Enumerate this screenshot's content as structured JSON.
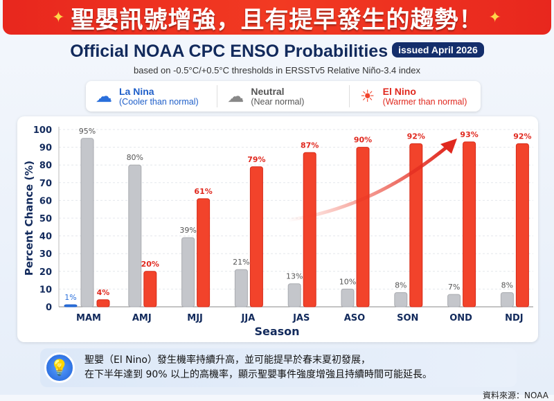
{
  "banner": {
    "text": "聖嬰訊號增強，且有提早發生的趨勢！",
    "sparkle": "✦"
  },
  "header": {
    "title": "Official NOAA CPC ENSO Probabilities",
    "badge": "issued April 2026",
    "subtitle": "based on -0.5°C/+0.5°C thresholds in ERSSTv5 Relative Niño-3.4 index"
  },
  "legend": [
    {
      "name": "La Nina",
      "desc": "(Cooler than normal)",
      "icon": "rain-cloud-icon",
      "color": "#1f5fc9"
    },
    {
      "name": "Neutral",
      "desc": "(Near normal)",
      "icon": "cloud-icon",
      "color": "#666666"
    },
    {
      "name": "El Nino",
      "desc": "(Warmer than normal)",
      "icon": "sun-icon",
      "color": "#e0281e"
    }
  ],
  "chart_data": {
    "type": "bar",
    "xlabel": "Season",
    "ylabel": "Percent Chance (%)",
    "ylim": [
      0,
      100
    ],
    "yticks": [
      0,
      10,
      20,
      30,
      40,
      50,
      60,
      70,
      80,
      90,
      100
    ],
    "categories": [
      "MAM",
      "AMJ",
      "MJJ",
      "JJA",
      "JAS",
      "ASO",
      "SON",
      "OND",
      "NDJ"
    ],
    "series": [
      {
        "name": "La Nina",
        "color": "#2a6fdb",
        "values": [
          1,
          null,
          null,
          null,
          null,
          null,
          null,
          null,
          null
        ]
      },
      {
        "name": "Neutral",
        "color": "#c4c6cb",
        "values": [
          95,
          80,
          39,
          21,
          13,
          10,
          8,
          7,
          8
        ]
      },
      {
        "name": "El Nino",
        "color": "#f2432b",
        "values": [
          4,
          20,
          61,
          79,
          87,
          90,
          92,
          93,
          92
        ]
      }
    ],
    "annotation": "rising-trend-arrow"
  },
  "tip": {
    "icon": "lightbulb-icon",
    "line1": "聖嬰（El Nino）發生機率持續升高，並可能提早於春末夏初發展，",
    "line2": "在下半年達到 90% 以上的高機率，顯示聖嬰事件強度增強且持續時間可能延長。"
  },
  "source": "資料來源：NOAA"
}
